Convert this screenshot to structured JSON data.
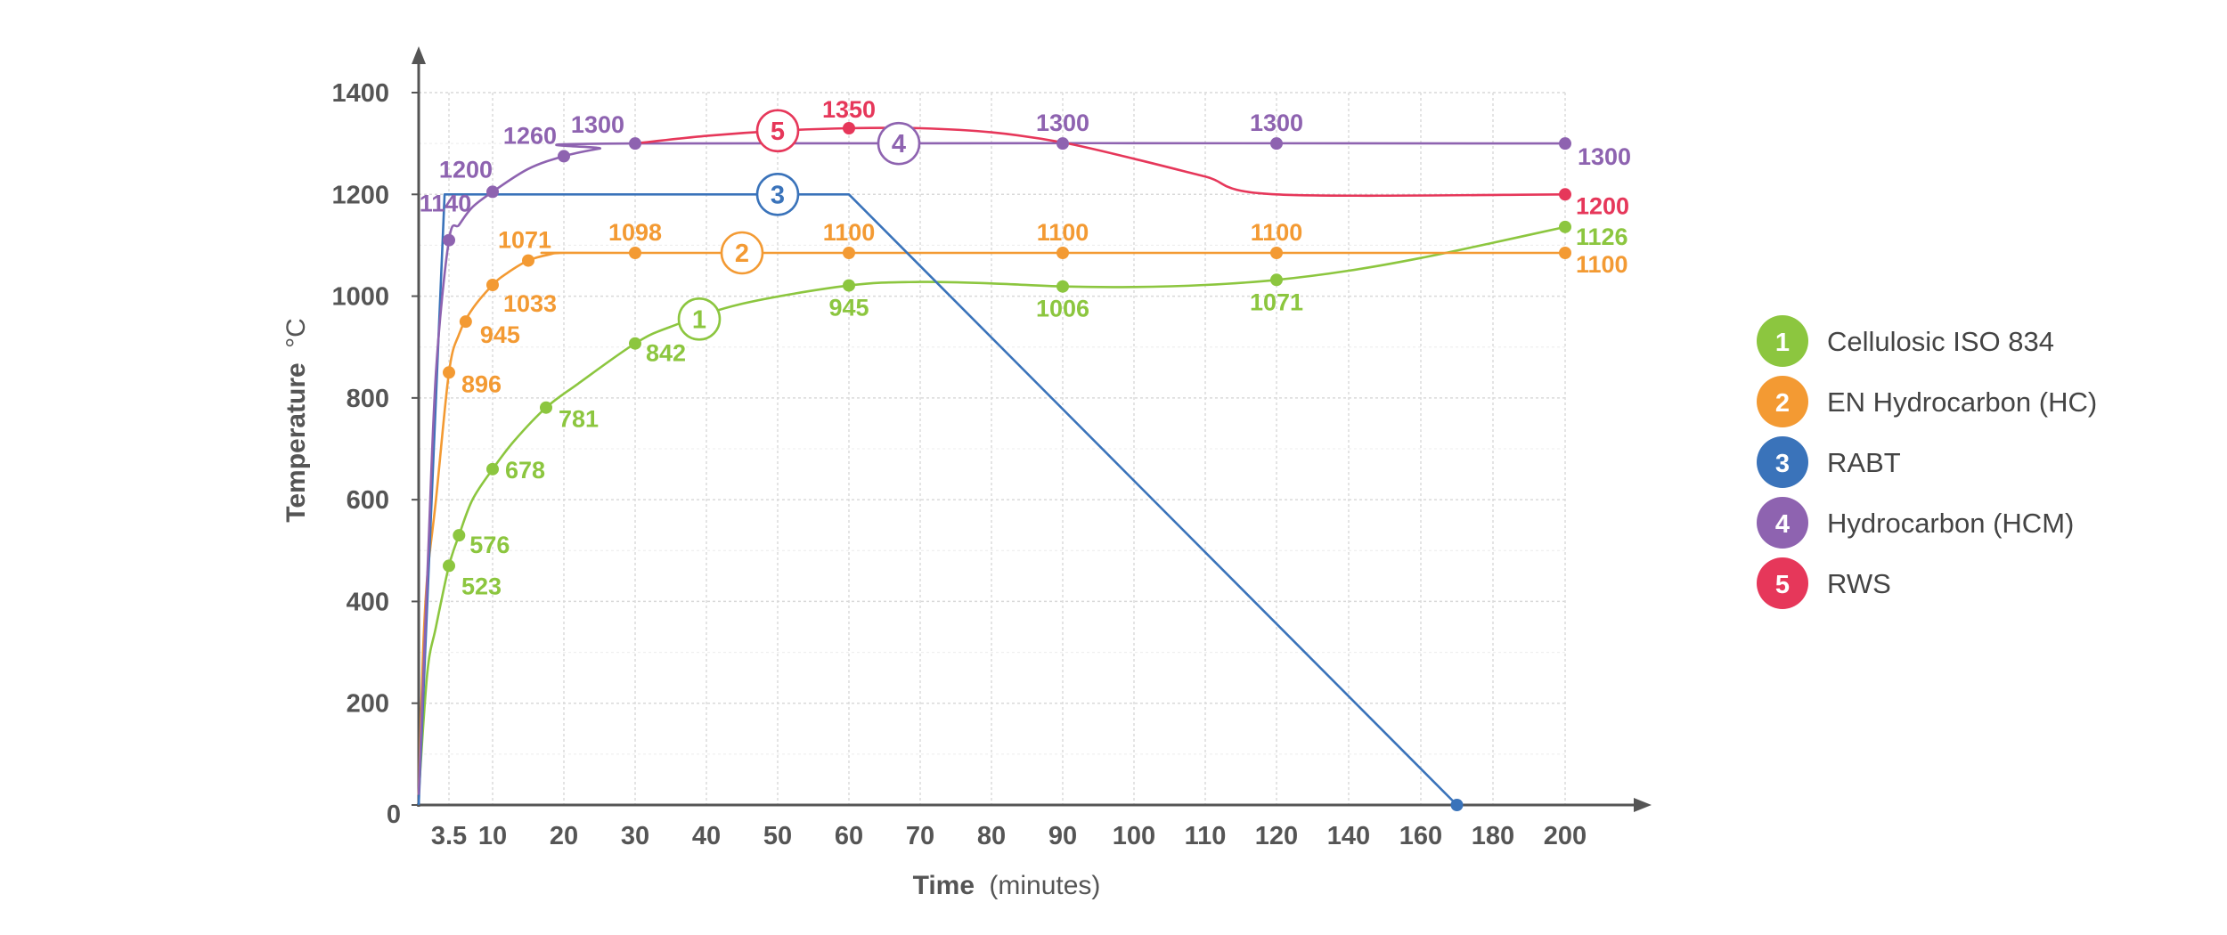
{
  "chart_data": {
    "type": "line",
    "xlabel_bold": "Time",
    "xlabel_rest": "(minutes)",
    "ylabel": "Temperature",
    "ylabel_unit": "°C",
    "x_ticks": [
      "3.5",
      "10",
      "20",
      "30",
      "40",
      "50",
      "60",
      "70",
      "80",
      "90",
      "100",
      "110",
      "120",
      "140",
      "160",
      "180",
      "200"
    ],
    "y_ticks": [
      0,
      200,
      400,
      600,
      800,
      1000,
      1200,
      1400
    ],
    "ylim": [
      0,
      1400
    ],
    "grid": true,
    "legend_position": "right",
    "series": [
      {
        "id": "1",
        "name": "Cellulosic ISO 834",
        "color": "#8cc63f",
        "curve": [
          [
            0,
            20
          ],
          [
            1,
            260
          ],
          [
            2,
            350
          ],
          [
            3.5,
            470
          ],
          [
            5,
            530
          ],
          [
            7,
            600
          ],
          [
            10,
            660
          ],
          [
            13,
            715
          ],
          [
            17.5,
            781
          ],
          [
            22,
            828
          ],
          [
            30,
            907
          ],
          [
            35,
            940
          ],
          [
            45,
            985
          ],
          [
            60,
            1021
          ],
          [
            70,
            1028
          ],
          [
            80,
            1025
          ],
          [
            90,
            1019
          ],
          [
            100,
            1018
          ],
          [
            110,
            1022
          ],
          [
            120,
            1032
          ],
          [
            140,
            1050
          ],
          [
            160,
            1075
          ],
          [
            180,
            1105
          ],
          [
            200,
            1136
          ]
        ],
        "points": [
          {
            "x": 3.5,
            "y": 523
          },
          {
            "x": 5,
            "y": 576
          },
          {
            "x": 10,
            "y": 678
          },
          {
            "x": 17.5,
            "y": 781
          },
          {
            "x": 30,
            "y": 842
          },
          {
            "x": 60,
            "y": 945
          },
          {
            "x": 90,
            "y": 1006
          },
          {
            "x": 120,
            "y": 1071
          },
          {
            "x": 200,
            "y": 1126
          }
        ],
        "badge_x": 39
      },
      {
        "id": "2",
        "name": "EN Hydrocarbon (HC)",
        "color": "#f39a33",
        "curve": [
          [
            0,
            20
          ],
          [
            0.5,
            300
          ],
          [
            1,
            450
          ],
          [
            2,
            600
          ],
          [
            3.5,
            850
          ],
          [
            5,
            925
          ],
          [
            7,
            975
          ],
          [
            10,
            1022
          ],
          [
            12,
            1045
          ],
          [
            15,
            1070
          ],
          [
            18,
            1082
          ],
          [
            20,
            1085
          ],
          [
            30,
            1085
          ],
          [
            200,
            1085
          ]
        ],
        "points": [
          {
            "x": 3.5,
            "y": 896
          },
          {
            "x": 6,
            "y": 945
          },
          {
            "x": 10,
            "y": 1033
          },
          {
            "x": 15,
            "y": 1071
          },
          {
            "x": 30,
            "y": 1098
          },
          {
            "x": 60,
            "y": 1100
          },
          {
            "x": 90,
            "y": 1100
          },
          {
            "x": 120,
            "y": 1100
          },
          {
            "x": 200,
            "y": 1100
          }
        ],
        "badge_x": 45
      },
      {
        "id": "3",
        "name": "RABT",
        "color": "#3a73ba",
        "curve": [
          [
            0,
            0
          ],
          [
            3,
            1200
          ],
          [
            60,
            1200
          ],
          [
            170,
            0
          ]
        ],
        "points": [
          {
            "x": 170,
            "y": 0
          }
        ],
        "badge_x": 50
      },
      {
        "id": "4",
        "name": "Hydrocarbon (HCM)",
        "color": "#8e63b0",
        "curve": [
          [
            0,
            20
          ],
          [
            1,
            450
          ],
          [
            2,
            850
          ],
          [
            3.5,
            1110
          ],
          [
            5,
            1140
          ],
          [
            7,
            1175
          ],
          [
            10,
            1205
          ],
          [
            15,
            1250
          ],
          [
            20,
            1275
          ],
          [
            25,
            1290
          ],
          [
            30,
            1300
          ],
          [
            200,
            1300
          ]
        ],
        "points": [
          {
            "x": 3.5,
            "y": 1140
          },
          {
            "x": 10,
            "y": 1200
          },
          {
            "x": 20,
            "y": 1260
          },
          {
            "x": 30,
            "y": 1300
          },
          {
            "x": 90,
            "y": 1300
          },
          {
            "x": 120,
            "y": 1300
          },
          {
            "x": 200,
            "y": 1300
          }
        ],
        "badge_x": 67
      },
      {
        "id": "5",
        "name": "RWS",
        "color": "#e6375a",
        "curve": [
          [
            30,
            1300
          ],
          [
            40,
            1315
          ],
          [
            50,
            1325
          ],
          [
            60,
            1330
          ],
          [
            70,
            1330
          ],
          [
            80,
            1322
          ],
          [
            90,
            1302
          ],
          [
            100,
            1270
          ],
          [
            110,
            1235
          ],
          [
            120,
            1200
          ],
          [
            200,
            1200
          ]
        ],
        "points": [
          {
            "x": 60,
            "y": 1350
          },
          {
            "x": 200,
            "y": 1200
          }
        ],
        "badge_x": 50
      }
    ]
  }
}
